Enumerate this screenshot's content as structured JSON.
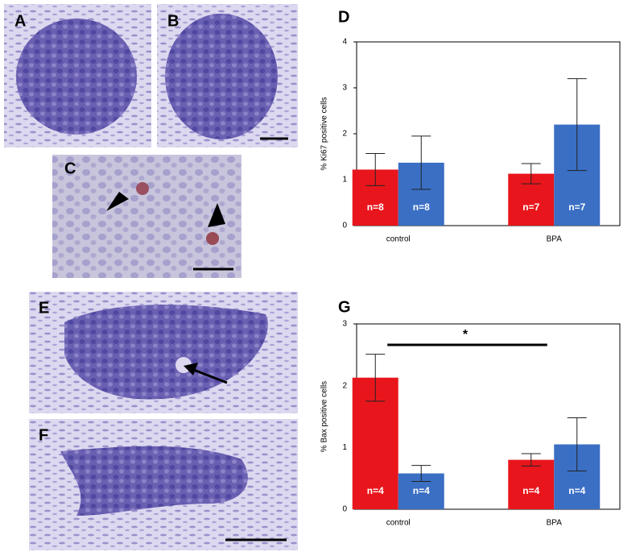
{
  "image_panels": [
    {
      "label": "A"
    },
    {
      "label": "B"
    },
    {
      "label": "C"
    },
    {
      "label": "E"
    },
    {
      "label": "F"
    }
  ],
  "chart_data": [
    {
      "type": "bar",
      "panel_label": "D",
      "ylabel": "% Ki67 positive cells",
      "categories": [
        "control",
        "BPA"
      ],
      "ylim": [
        0,
        4
      ],
      "yticks": [
        0,
        1,
        2,
        3,
        4
      ],
      "series": [
        {
          "color": "#e8161c",
          "values": [
            1.22,
            1.13
          ],
          "errors": [
            0.35,
            0.22
          ],
          "n_labels": [
            "n=8",
            "n=7"
          ]
        },
        {
          "color": "#3a6fc4",
          "values": [
            1.37,
            2.2
          ],
          "errors": [
            0.58,
            1.0
          ],
          "n_labels": [
            "n=8",
            "n=7"
          ]
        }
      ]
    },
    {
      "type": "bar",
      "panel_label": "G",
      "ylabel": "% Bax positive cells",
      "categories": [
        "control",
        "BPA"
      ],
      "ylim": [
        0,
        3
      ],
      "yticks": [
        0,
        1,
        2,
        3
      ],
      "annotation": "*",
      "series": [
        {
          "color": "#e8161c",
          "values": [
            2.13,
            0.8
          ],
          "errors": [
            0.38,
            0.1
          ],
          "n_labels": [
            "n=4",
            "n=4"
          ]
        },
        {
          "color": "#3a6fc4",
          "values": [
            0.58,
            1.05
          ],
          "errors": [
            0.13,
            0.43
          ],
          "n_labels": [
            "n=4",
            "n=4"
          ]
        }
      ]
    }
  ]
}
